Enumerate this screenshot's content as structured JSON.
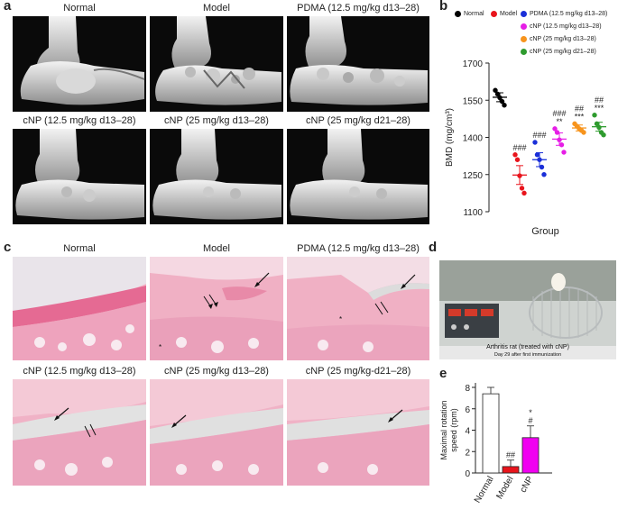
{
  "panels": {
    "a": {
      "label": "a",
      "titles": [
        "Normal",
        "Model",
        "PDMA (12.5 mg/kg d13–28)",
        "cNP (12.5 mg/kg d13–28)",
        "cNP (25 mg/kg d13–28)",
        "cNP (25 mg/kg d21–28)"
      ]
    },
    "b": {
      "label": "b"
    },
    "c": {
      "label": "c",
      "titles": [
        "Normal",
        "Model",
        "PDMA (12.5 mg/kg d13–28)",
        "cNP (12.5 mg/kg d13–28)",
        "cNP (25 mg/kg d13–28)",
        "cNP (25 mg/kg-d21–28)"
      ],
      "asterisk": "*"
    },
    "d": {
      "label": "d",
      "caption_line1": "Arthritis rat (treated with cNP)",
      "caption_line2": "Day 29 after first immunization"
    },
    "e": {
      "label": "e"
    }
  },
  "colors": {
    "normal": "#000000",
    "model": "#e8141c",
    "pdma": "#1a2fd8",
    "cnp_12_5_d13_28": "#e61ee6",
    "cnp_25_d13_28": "#f7941d",
    "cnp_25_d21_28": "#2e9b2e",
    "he_stain": "#e8628f",
    "ct_background": "#0a0a0a"
  },
  "chart_data": [
    {
      "id": "b",
      "type": "scatter",
      "xlabel": "Group",
      "ylabel": "BMD (mg/cm³)",
      "ylim": [
        1100,
        1700
      ],
      "yticks": [
        "1700",
        "1550",
        "1400",
        "1250",
        "1100"
      ],
      "legend_placement": "top",
      "series": [
        {
          "name": "Normal",
          "color": "#000000",
          "mean": 1562,
          "sem": 18,
          "points": [
            1590,
            1575,
            1560,
            1545,
            1530
          ],
          "sig": []
        },
        {
          "name": "Model",
          "color": "#e8141c",
          "mean": 1248,
          "sem": 38,
          "points": [
            1330,
            1310,
            1245,
            1195,
            1175
          ],
          "sig": [
            "###"
          ]
        },
        {
          "name": "PDMA (12.5 mg/kg d13–28)",
          "color": "#1a2fd8",
          "mean": 1310,
          "sem": 28,
          "points": [
            1380,
            1330,
            1310,
            1280,
            1250
          ],
          "sig": [
            "###"
          ]
        },
        {
          "name": "cNP (12.5 mg/kg d13–28)",
          "color": "#e61ee6",
          "mean": 1393,
          "sem": 25,
          "points": [
            1435,
            1420,
            1390,
            1370,
            1340
          ],
          "sig": [
            "###",
            "**"
          ]
        },
        {
          "name": "cNP (25 mg/kg d13–28)",
          "color": "#f7941d",
          "mean": 1438,
          "sem": 12,
          "points": [
            1455,
            1445,
            1435,
            1428,
            1420
          ],
          "sig": [
            "##",
            "***"
          ]
        },
        {
          "name": "cNP (25 mg/kg d21–28)",
          "color": "#2e9b2e",
          "mean": 1443,
          "sem": 18,
          "points": [
            1490,
            1455,
            1440,
            1420,
            1410
          ],
          "sig": [
            "##",
            "***"
          ]
        }
      ]
    },
    {
      "id": "e",
      "type": "bar",
      "ylabel": "Maximal rotation speed (rpm)",
      "ylim": [
        0,
        8
      ],
      "yticks": [
        "8",
        "6",
        "4",
        "2",
        "0"
      ],
      "categories": [
        "Normal",
        "Model",
        "cNP"
      ],
      "values": [
        7.4,
        0.6,
        3.3
      ],
      "errors": [
        0.6,
        0.6,
        1.1
      ],
      "colors": [
        "#ffffff",
        "#e8141c",
        "#f000f0"
      ],
      "sig": [
        [],
        [
          "##"
        ],
        [
          "*",
          "#"
        ]
      ]
    }
  ]
}
